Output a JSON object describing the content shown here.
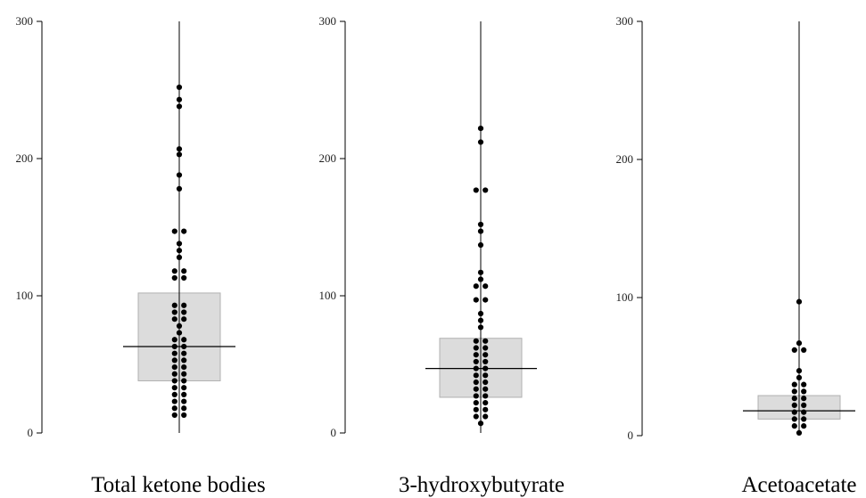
{
  "chart_data": [
    {
      "type": "scatter",
      "subtype": "box-and-dot-plot",
      "title": "Total ketone bodies",
      "ylim": [
        0,
        300
      ],
      "yticks": [
        "0",
        "100",
        "200",
        "300"
      ],
      "box": {
        "q1": 38,
        "median": 63,
        "q3": 102
      },
      "colors": {
        "box": "#dcdcdc",
        "points": "#000000"
      },
      "values": [
        252,
        243,
        238,
        207,
        203,
        188,
        178,
        147,
        147,
        138,
        133,
        128,
        118,
        118,
        113,
        113,
        93,
        93,
        88,
        88,
        83,
        83,
        78,
        73,
        68,
        68,
        63,
        63,
        58,
        58,
        53,
        53,
        48,
        48,
        43,
        43,
        38,
        38,
        33,
        33,
        28,
        28,
        23,
        23,
        18,
        18,
        13,
        13
      ]
    },
    {
      "type": "scatter",
      "subtype": "box-and-dot-plot",
      "title": "3-hydroxybutyrate",
      "ylim": [
        0,
        300
      ],
      "yticks": [
        "0",
        "100",
        "200",
        "300"
      ],
      "box": {
        "q1": 26,
        "median": 47,
        "q3": 69
      },
      "colors": {
        "box": "#dcdcdc",
        "points": "#000000"
      },
      "values": [
        222,
        212,
        177,
        177,
        152,
        147,
        137,
        117,
        112,
        107,
        107,
        97,
        97,
        87,
        82,
        77,
        67,
        67,
        62,
        62,
        57,
        57,
        52,
        52,
        47,
        47,
        42,
        42,
        37,
        37,
        32,
        32,
        27,
        27,
        22,
        22,
        17,
        17,
        12,
        12,
        7
      ]
    },
    {
      "type": "scatter",
      "subtype": "box-and-dot-plot",
      "title": "Acetoacetate",
      "ylim": [
        0,
        300
      ],
      "yticks": [
        "0",
        "100",
        "200",
        "300"
      ],
      "box": {
        "q1": 12,
        "median": 18,
        "q3": 29
      },
      "colors": {
        "box": "#dcdcdc",
        "points": "#000000"
      },
      "values": [
        97,
        67,
        62,
        62,
        47,
        42,
        37,
        37,
        32,
        32,
        27,
        27,
        22,
        22,
        17,
        17,
        12,
        12,
        7,
        7,
        2
      ]
    }
  ]
}
